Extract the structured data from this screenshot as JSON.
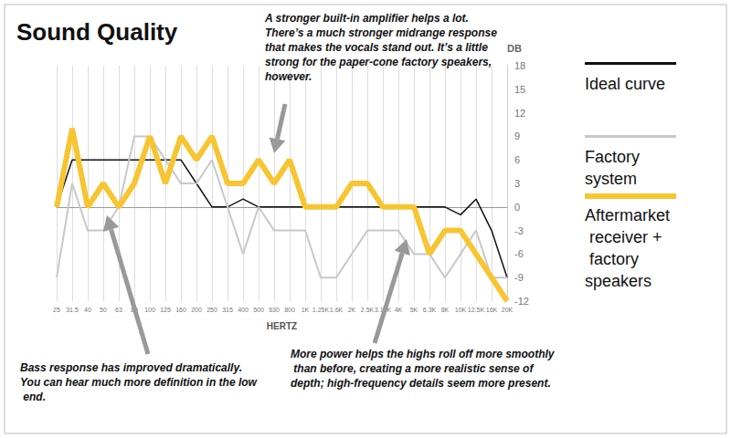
{
  "chart_data": {
    "type": "line",
    "title": "Sound Quality",
    "xlabel": "HERTZ",
    "ylabel": "DB",
    "categories": [
      "25",
      "31.5",
      "40",
      "50",
      "63",
      "80",
      "100",
      "125",
      "160",
      "200",
      "250",
      "315",
      "400",
      "500",
      "630",
      "800",
      "1K",
      "1.25K",
      "1.6K",
      "2K",
      "2.5K",
      "3.15K",
      "4K",
      "5K",
      "6.3K",
      "8K",
      "10K",
      "12.5K",
      "16K",
      "20K"
    ],
    "series": [
      {
        "name": "Ideal curve",
        "color": "#111111",
        "values": [
          0,
          6,
          6,
          6,
          6,
          6,
          6,
          6,
          6,
          3,
          0,
          0,
          1,
          0,
          0,
          0,
          0,
          0,
          0,
          0,
          0,
          0,
          0,
          0,
          0,
          0,
          -1,
          1,
          -3,
          -9
        ]
      },
      {
        "name": "Factory system",
        "color": "#c8c8c8",
        "values": [
          -9,
          3,
          -3,
          -3,
          0,
          9,
          9,
          6,
          3,
          3,
          6,
          0,
          -6,
          0,
          -3,
          -3,
          -3,
          -9,
          -9,
          -6,
          -3,
          -3,
          -3,
          -6,
          -6,
          -9,
          -6,
          -3,
          -9,
          -9
        ]
      },
      {
        "name": "Aftermarket receiver + factory speakers",
        "color": "#f7c531",
        "values": [
          0,
          10,
          0,
          3,
          0,
          3,
          9,
          3,
          9,
          6,
          9,
          3,
          3,
          6,
          3,
          6,
          0,
          0,
          0,
          3,
          3,
          0,
          0,
          0,
          -6,
          -3,
          -3,
          -6,
          -9,
          -12
        ]
      }
    ],
    "ylim": [
      -12,
      18
    ],
    "yticks": [
      -12,
      -9,
      -6,
      -3,
      0,
      3,
      6,
      9,
      12,
      15,
      18
    ],
    "grid": true,
    "legend": "right",
    "annotations": [
      {
        "text": "A stronger built-in amplifier helps a lot. There’s a much stronger midrange response that makes the vocals stand out. It’s a little strong for the paper-cone factory speakers, however."
      },
      {
        "text": "Bass response has improved dramatically. You can hear much more definition in the low end."
      },
      {
        "text": "More power helps the highs roll off more smoothly than before, creating a more realistic sense of depth; high-frequency details seem more present."
      }
    ]
  }
}
